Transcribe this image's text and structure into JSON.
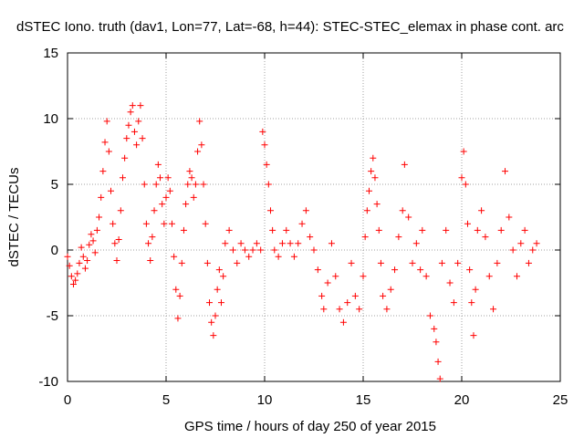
{
  "chart_data": {
    "type": "scatter",
    "title": "dSTEC Iono. truth (dav1, Lon=77, Lat=-68, h=44): STEC-STEC_elemax in phase cont. arc",
    "xlabel": "GPS time / hours of day 250 of year 2015",
    "ylabel": "dSTEC  / TECUs",
    "xlim": [
      0,
      25
    ],
    "ylim": [
      -10,
      15
    ],
    "xticks": [
      0,
      5,
      10,
      15,
      20,
      25
    ],
    "yticks": [
      -10,
      -5,
      0,
      5,
      10,
      15
    ],
    "grid": true,
    "marker": "plus",
    "series_color": "#ff0000",
    "series": [
      {
        "points": [
          [
            0.0,
            -0.5
          ],
          [
            0.1,
            -1.2
          ],
          [
            0.2,
            -2.0
          ],
          [
            0.3,
            -2.6
          ],
          [
            0.4,
            -2.3
          ],
          [
            0.5,
            -1.8
          ],
          [
            0.6,
            -1.0
          ],
          [
            0.7,
            0.2
          ],
          [
            0.8,
            -0.5
          ],
          [
            0.9,
            -1.4
          ],
          [
            1.0,
            -0.8
          ],
          [
            1.1,
            0.4
          ],
          [
            1.2,
            1.2
          ],
          [
            1.3,
            0.7
          ],
          [
            1.4,
            -0.2
          ],
          [
            1.5,
            1.5
          ],
          [
            1.6,
            2.5
          ],
          [
            1.7,
            4.0
          ],
          [
            1.8,
            6.0
          ],
          [
            1.9,
            8.2
          ],
          [
            2.0,
            9.8
          ],
          [
            2.1,
            7.5
          ],
          [
            2.2,
            4.5
          ],
          [
            2.3,
            2.0
          ],
          [
            2.4,
            0.5
          ],
          [
            2.5,
            -0.8
          ],
          [
            2.6,
            0.8
          ],
          [
            2.7,
            3.0
          ],
          [
            2.8,
            5.5
          ],
          [
            2.9,
            7.0
          ],
          [
            3.0,
            8.5
          ],
          [
            3.1,
            9.5
          ],
          [
            3.2,
            10.5
          ],
          [
            3.3,
            11.0
          ],
          [
            3.4,
            9.0
          ],
          [
            3.5,
            8.0
          ],
          [
            3.6,
            9.8
          ],
          [
            3.7,
            11.0
          ],
          [
            3.8,
            8.5
          ],
          [
            3.9,
            5.0
          ],
          [
            4.0,
            2.0
          ],
          [
            4.1,
            0.5
          ],
          [
            4.2,
            -0.8
          ],
          [
            4.3,
            1.0
          ],
          [
            4.4,
            3.0
          ],
          [
            4.5,
            5.0
          ],
          [
            4.6,
            6.5
          ],
          [
            4.7,
            5.5
          ],
          [
            4.8,
            3.5
          ],
          [
            4.9,
            2.0
          ],
          [
            5.0,
            4.0
          ],
          [
            5.1,
            5.5
          ],
          [
            5.2,
            4.5
          ],
          [
            5.3,
            2.0
          ],
          [
            5.4,
            -0.5
          ],
          [
            5.5,
            -3.0
          ],
          [
            5.6,
            -5.2
          ],
          [
            5.7,
            -3.5
          ],
          [
            5.8,
            -1.0
          ],
          [
            5.9,
            1.5
          ],
          [
            6.0,
            3.5
          ],
          [
            6.1,
            5.0
          ],
          [
            6.2,
            6.0
          ],
          [
            6.3,
            5.5
          ],
          [
            6.4,
            4.0
          ],
          [
            6.5,
            5.0
          ],
          [
            6.6,
            7.5
          ],
          [
            6.7,
            9.8
          ],
          [
            6.8,
            8.0
          ],
          [
            6.9,
            5.0
          ],
          [
            7.0,
            2.0
          ],
          [
            7.1,
            -1.0
          ],
          [
            7.2,
            -4.0
          ],
          [
            7.3,
            -5.5
          ],
          [
            7.4,
            -6.5
          ],
          [
            7.5,
            -5.0
          ],
          [
            7.6,
            -3.0
          ],
          [
            7.7,
            -1.5
          ],
          [
            7.8,
            -4.0
          ],
          [
            7.9,
            -2.0
          ],
          [
            8.0,
            0.5
          ],
          [
            8.2,
            1.5
          ],
          [
            8.4,
            0.0
          ],
          [
            8.6,
            -1.0
          ],
          [
            8.8,
            0.5
          ],
          [
            9.0,
            0.0
          ],
          [
            9.2,
            -0.5
          ],
          [
            9.4,
            0.0
          ],
          [
            9.6,
            0.5
          ],
          [
            9.8,
            0.0
          ],
          [
            9.9,
            9.0
          ],
          [
            10.0,
            8.0
          ],
          [
            10.1,
            6.5
          ],
          [
            10.2,
            5.0
          ],
          [
            10.3,
            3.0
          ],
          [
            10.4,
            1.5
          ],
          [
            10.5,
            0.0
          ],
          [
            10.7,
            -0.5
          ],
          [
            10.9,
            0.5
          ],
          [
            11.1,
            1.5
          ],
          [
            11.3,
            0.5
          ],
          [
            11.5,
            -0.5
          ],
          [
            11.7,
            0.5
          ],
          [
            11.9,
            2.0
          ],
          [
            12.1,
            3.0
          ],
          [
            12.3,
            1.0
          ],
          [
            12.5,
            0.0
          ],
          [
            12.7,
            -1.5
          ],
          [
            12.9,
            -3.5
          ],
          [
            13.0,
            -4.5
          ],
          [
            13.2,
            -2.5
          ],
          [
            13.4,
            0.5
          ],
          [
            13.6,
            -2.0
          ],
          [
            13.8,
            -4.5
          ],
          [
            14.0,
            -5.5
          ],
          [
            14.2,
            -4.0
          ],
          [
            14.4,
            -1.0
          ],
          [
            14.6,
            -3.5
          ],
          [
            14.8,
            -4.5
          ],
          [
            15.0,
            -2.0
          ],
          [
            15.1,
            1.0
          ],
          [
            15.2,
            3.0
          ],
          [
            15.3,
            4.5
          ],
          [
            15.4,
            6.0
          ],
          [
            15.5,
            7.0
          ],
          [
            15.6,
            5.5
          ],
          [
            15.7,
            3.5
          ],
          [
            15.8,
            1.5
          ],
          [
            15.9,
            -1.0
          ],
          [
            16.0,
            -3.5
          ],
          [
            16.2,
            -4.5
          ],
          [
            16.4,
            -3.0
          ],
          [
            16.6,
            -1.5
          ],
          [
            16.8,
            1.0
          ],
          [
            17.0,
            3.0
          ],
          [
            17.1,
            6.5
          ],
          [
            17.3,
            2.5
          ],
          [
            17.5,
            -1.0
          ],
          [
            17.7,
            0.5
          ],
          [
            17.9,
            -1.5
          ],
          [
            18.0,
            1.5
          ],
          [
            18.2,
            -2.0
          ],
          [
            18.4,
            -5.0
          ],
          [
            18.6,
            -6.0
          ],
          [
            18.7,
            -7.0
          ],
          [
            18.8,
            -8.5
          ],
          [
            18.9,
            -9.8
          ],
          [
            19.0,
            -1.0
          ],
          [
            19.2,
            1.5
          ],
          [
            19.4,
            -2.5
          ],
          [
            19.6,
            -4.0
          ],
          [
            19.8,
            -1.0
          ],
          [
            20.0,
            5.5
          ],
          [
            20.1,
            7.5
          ],
          [
            20.2,
            5.0
          ],
          [
            20.3,
            2.0
          ],
          [
            20.4,
            -1.5
          ],
          [
            20.5,
            -4.0
          ],
          [
            20.6,
            -6.5
          ],
          [
            20.7,
            -3.0
          ],
          [
            20.8,
            1.5
          ],
          [
            21.0,
            3.0
          ],
          [
            21.2,
            1.0
          ],
          [
            21.4,
            -2.0
          ],
          [
            21.6,
            -4.5
          ],
          [
            21.8,
            -1.0
          ],
          [
            22.0,
            1.5
          ],
          [
            22.2,
            6.0
          ],
          [
            22.4,
            2.5
          ],
          [
            22.6,
            0.0
          ],
          [
            22.8,
            -2.0
          ],
          [
            23.0,
            0.5
          ],
          [
            23.2,
            1.5
          ],
          [
            23.4,
            -1.0
          ],
          [
            23.6,
            0.0
          ],
          [
            23.8,
            0.5
          ]
        ]
      }
    ]
  }
}
